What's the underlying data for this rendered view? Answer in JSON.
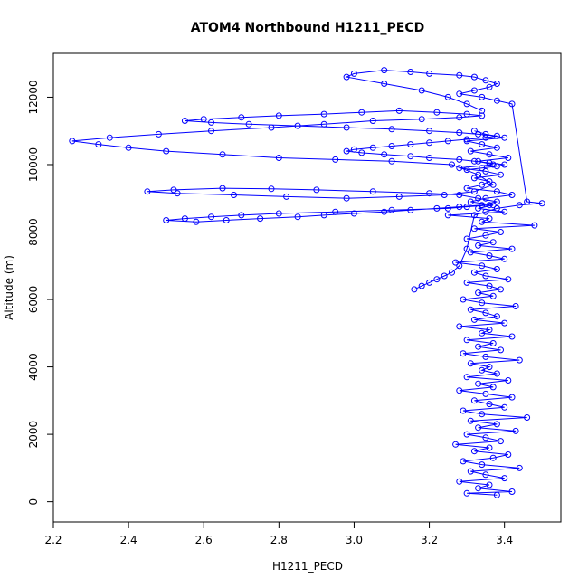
{
  "chart_data": {
    "type": "scatter",
    "title": "ATOM4 Northbound H1211_PECD",
    "xlabel": "H1211_PECD",
    "ylabel": "Altitude (m)",
    "xlim": [
      2.2,
      3.55
    ],
    "ylim": [
      -600,
      13300
    ],
    "xticks": [
      2.2,
      2.4,
      2.6,
      2.8,
      3.0,
      3.2,
      3.4
    ],
    "xtick_labels": [
      "2.2",
      "2.4",
      "2.6",
      "2.8",
      "3.0",
      "3.2",
      "3.4"
    ],
    "yticks": [
      0,
      2000,
      4000,
      6000,
      8000,
      10000,
      12000
    ],
    "ytick_labels": [
      "0",
      "2000",
      "4000",
      "6000",
      "8000",
      "10000",
      "12000"
    ],
    "grid": false,
    "color": "#0000ff",
    "series": [
      {
        "x": [
          3.38,
          3.3,
          3.42,
          3.33,
          3.36,
          3.28,
          3.4,
          3.35,
          3.31,
          3.44,
          3.34,
          3.29,
          3.37,
          3.41,
          3.32,
          3.36,
          3.27,
          3.39,
          3.35,
          3.3,
          3.43,
          3.33,
          3.38,
          3.31,
          3.46,
          3.34,
          3.29,
          3.4,
          3.36,
          3.32,
          3.42,
          3.35,
          3.28,
          3.37,
          3.33,
          3.41,
          3.3,
          3.38,
          3.34,
          3.36,
          3.31,
          3.44,
          3.35,
          3.29,
          3.39,
          3.33,
          3.37,
          3.3,
          3.42,
          3.34,
          3.36,
          3.28,
          3.4,
          3.32,
          3.38,
          3.35,
          3.31,
          3.43,
          3.34,
          3.29,
          3.37,
          3.33,
          3.39,
          3.36,
          3.3,
          3.41,
          3.35,
          3.32,
          3.38,
          3.34,
          3.27,
          3.4,
          3.36,
          3.31,
          3.42,
          3.33,
          3.37,
          3.3,
          3.35,
          3.39,
          3.32,
          3.48,
          3.34,
          3.36,
          3.25,
          3.4,
          3.33,
          3.37,
          3.31,
          3.35,
          3.42,
          3.38,
          3.3,
          3.34,
          3.36,
          3.32,
          3.39,
          3.35,
          3.28,
          3.37,
          3.33,
          3.41,
          3.36,
          3.31,
          3.38,
          3.34,
          3.3,
          3.4,
          3.35,
          3.32
        ],
        "y": [
          200,
          250,
          300,
          400,
          500,
          600,
          700,
          800,
          900,
          1000,
          1100,
          1200,
          1300,
          1400,
          1500,
          1600,
          1700,
          1800,
          1900,
          2000,
          2100,
          2200,
          2300,
          2400,
          2500,
          2600,
          2700,
          2800,
          2900,
          3000,
          3100,
          3200,
          3300,
          3400,
          3500,
          3600,
          3700,
          3800,
          3900,
          4000,
          4100,
          4200,
          4300,
          4400,
          4500,
          4600,
          4700,
          4800,
          4900,
          5000,
          5100,
          5200,
          5300,
          5400,
          5500,
          5600,
          5700,
          5800,
          5900,
          6000,
          6100,
          6200,
          6300,
          6400,
          6500,
          6600,
          6700,
          6800,
          6900,
          7000,
          7100,
          7200,
          7300,
          7400,
          7500,
          7600,
          7700,
          7800,
          7900,
          8000,
          8100,
          8200,
          8300,
          8400,
          8500,
          8600,
          8700,
          8800,
          8900,
          9000,
          9100,
          9200,
          9300,
          9400,
          9500,
          9600,
          9700,
          9800,
          9900,
          10000,
          10100,
          10200,
          10300,
          10400,
          10500,
          10600,
          10700,
          10800,
          10900,
          11000
        ]
      },
      {
        "x": [
          3.36,
          3.3,
          3.25,
          3.1,
          2.95,
          2.8,
          2.7,
          2.62,
          2.55,
          2.5,
          2.58,
          2.66,
          2.75,
          2.85,
          2.92,
          3.0,
          3.08,
          3.15,
          3.22,
          3.28,
          3.34,
          3.38,
          3.33,
          3.28,
          3.2,
          3.05,
          2.9,
          2.78,
          2.65,
          2.52,
          2.45,
          2.53,
          2.68,
          2.82,
          2.98,
          3.12,
          3.24,
          3.32,
          3.37,
          3.33,
          3.26,
          3.1,
          2.95,
          2.8,
          2.65,
          2.5,
          2.4,
          2.32,
          2.25,
          2.35,
          2.48,
          2.62,
          2.78,
          2.92,
          3.05,
          3.18,
          3.28,
          3.34,
          3.3,
          3.22,
          3.12,
          3.02,
          2.92,
          2.8,
          2.7,
          2.6,
          2.55,
          2.62,
          2.72,
          2.85,
          2.98,
          3.1,
          3.2,
          3.28,
          3.33,
          3.38,
          3.35,
          3.3,
          3.25,
          3.2,
          3.15,
          3.1,
          3.05,
          3.0,
          2.98,
          3.02,
          3.08,
          3.15,
          3.2,
          3.28,
          3.32,
          3.36,
          3.4,
          3.38,
          3.34,
          3.3
        ],
        "y": [
          8800,
          8750,
          8700,
          8650,
          8600,
          8550,
          8500,
          8450,
          8400,
          8350,
          8300,
          8350,
          8400,
          8450,
          8500,
          8550,
          8600,
          8650,
          8700,
          8750,
          8800,
          8900,
          9000,
          9100,
          9150,
          9200,
          9250,
          9280,
          9300,
          9250,
          9200,
          9150,
          9100,
          9050,
          9000,
          9050,
          9100,
          9200,
          9400,
          9700,
          10000,
          10100,
          10150,
          10200,
          10300,
          10400,
          10500,
          10600,
          10700,
          10800,
          10900,
          11000,
          11100,
          11200,
          11300,
          11350,
          11400,
          11450,
          11500,
          11550,
          11600,
          11550,
          11500,
          11450,
          11400,
          11350,
          11300,
          11250,
          11200,
          11150,
          11100,
          11050,
          11000,
          10950,
          10900,
          10850,
          10800,
          10750,
          10700,
          10650,
          10600,
          10550,
          10500,
          10450,
          10400,
          10350,
          10300,
          10250,
          10200,
          10150,
          10100,
          10050,
          10000,
          9950,
          9900,
          9850
        ]
      },
      {
        "x": [
          3.34,
          3.3,
          3.25,
          3.18,
          3.08,
          2.98,
          3.0,
          3.08,
          3.15,
          3.2,
          3.28,
          3.32,
          3.35,
          3.38,
          3.36,
          3.32,
          3.28,
          3.34,
          3.38,
          3.42,
          3.46,
          3.5,
          3.44,
          3.38,
          3.35,
          3.32,
          3.3,
          3.28,
          3.26,
          3.24,
          3.22,
          3.2,
          3.18,
          3.16
        ],
        "y": [
          11600,
          11800,
          12000,
          12200,
          12400,
          12600,
          12700,
          12800,
          12750,
          12700,
          12650,
          12600,
          12500,
          12400,
          12300,
          12200,
          12100,
          12000,
          11900,
          11800,
          8900,
          8850,
          8800,
          8700,
          8600,
          8500,
          7500,
          7000,
          6800,
          6700,
          6600,
          6500,
          6400,
          6300
        ]
      }
    ]
  }
}
